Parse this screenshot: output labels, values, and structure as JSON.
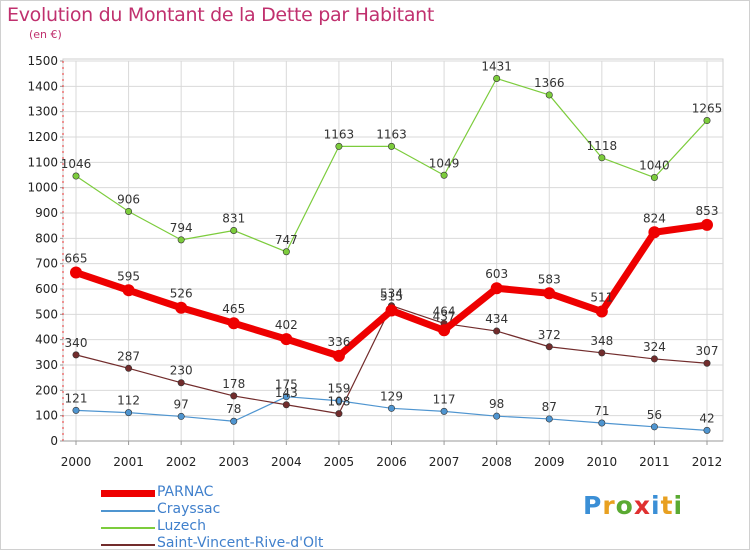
{
  "title": "Evolution du Montant de la Dette par Habitant",
  "unit_label": "(en €)",
  "logo": "Proxiti",
  "colors": {
    "title": "#c0306e",
    "axis": "#222222",
    "grid": "#d9d9d9",
    "legend_text": "#4080cc"
  },
  "chart_data": {
    "type": "line",
    "x": [
      "2000",
      "2001",
      "2002",
      "2003",
      "2004",
      "2005",
      "2006",
      "2007",
      "2008",
      "2009",
      "2010",
      "2011",
      "2012"
    ],
    "ylim": [
      0,
      1500
    ],
    "yticks": [
      0,
      100,
      200,
      300,
      400,
      500,
      600,
      700,
      800,
      900,
      1000,
      1100,
      1200,
      1300,
      1400,
      1500
    ],
    "grid": true,
    "legend_position": "bottom-left",
    "series": [
      {
        "name": "Crayssac",
        "color": "#4f95d0",
        "width": 1.2,
        "values": [
          121,
          112,
          97,
          78,
          175,
          159,
          129,
          117,
          98,
          87,
          71,
          56,
          42
        ]
      },
      {
        "name": "Luzech",
        "color": "#7ccc3c",
        "width": 1.2,
        "values": [
          1046,
          906,
          794,
          831,
          747,
          1163,
          1163,
          1049,
          1431,
          1366,
          1118,
          1040,
          1265
        ]
      },
      {
        "name": "Saint-Vincent-Rive-d'Olt",
        "color": "#722c2c",
        "width": 1.2,
        "values": [
          340,
          287,
          230,
          178,
          143,
          108,
          534,
          464,
          434,
          372,
          348,
          324,
          307
        ]
      },
      {
        "name": "PARNAC",
        "color": "#ee0000",
        "width": 7,
        "values": [
          665,
          595,
          526,
          465,
          402,
          336,
          515,
          437,
          603,
          583,
          511,
          824,
          853
        ]
      }
    ],
    "legend_order": [
      "PARNAC",
      "Crayssac",
      "Luzech",
      "Saint-Vincent-Rive-d'Olt"
    ]
  }
}
